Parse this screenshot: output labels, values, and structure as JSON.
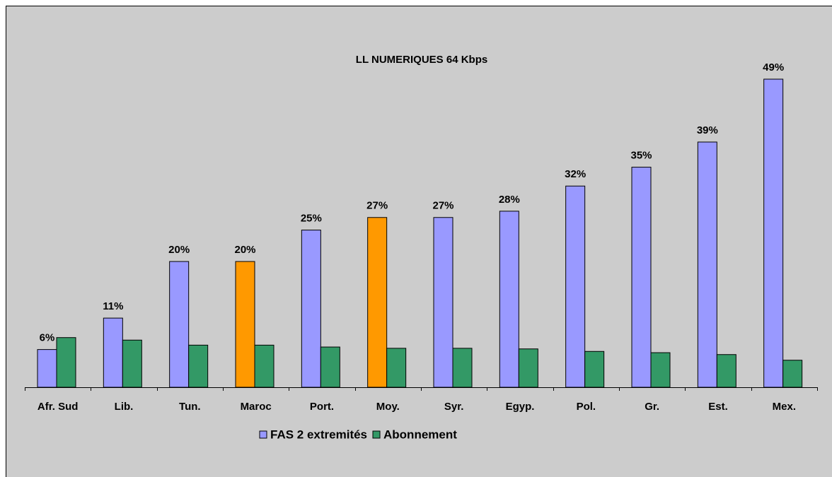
{
  "chart_data": {
    "type": "bar",
    "title": "LL NUMERIQUES 64 Kbps",
    "categories": [
      "Afr. Sud",
      "Lib.",
      "Tun.",
      "Maroc",
      "Port.",
      "Moy.",
      "Syr.",
      "Egyp.",
      "Pol.",
      "Gr.",
      "Est.",
      "Mex."
    ],
    "series": [
      {
        "name": "FAS 2 extremités",
        "color": "#9999ff",
        "point_colors": [
          "#9999ff",
          "#9999ff",
          "#9999ff",
          "#ff9900",
          "#9999ff",
          "#ff9900",
          "#9999ff",
          "#9999ff",
          "#9999ff",
          "#9999ff",
          "#9999ff",
          "#9999ff"
        ],
        "values": [
          6,
          11,
          20,
          20,
          25,
          27,
          27,
          28,
          32,
          35,
          39,
          49
        ],
        "value_labels": [
          "6%",
          "11%",
          "20%",
          "20%",
          "25%",
          "27%",
          "27%",
          "28%",
          "32%",
          "35%",
          "39%",
          "49%"
        ]
      },
      {
        "name": "Abonnement",
        "color": "#339966",
        "values": [
          7.9,
          7.5,
          6.7,
          6.7,
          6.4,
          6.2,
          6.2,
          6.1,
          5.7,
          5.5,
          5.2,
          4.3
        ]
      }
    ],
    "legend": "bottom"
  }
}
